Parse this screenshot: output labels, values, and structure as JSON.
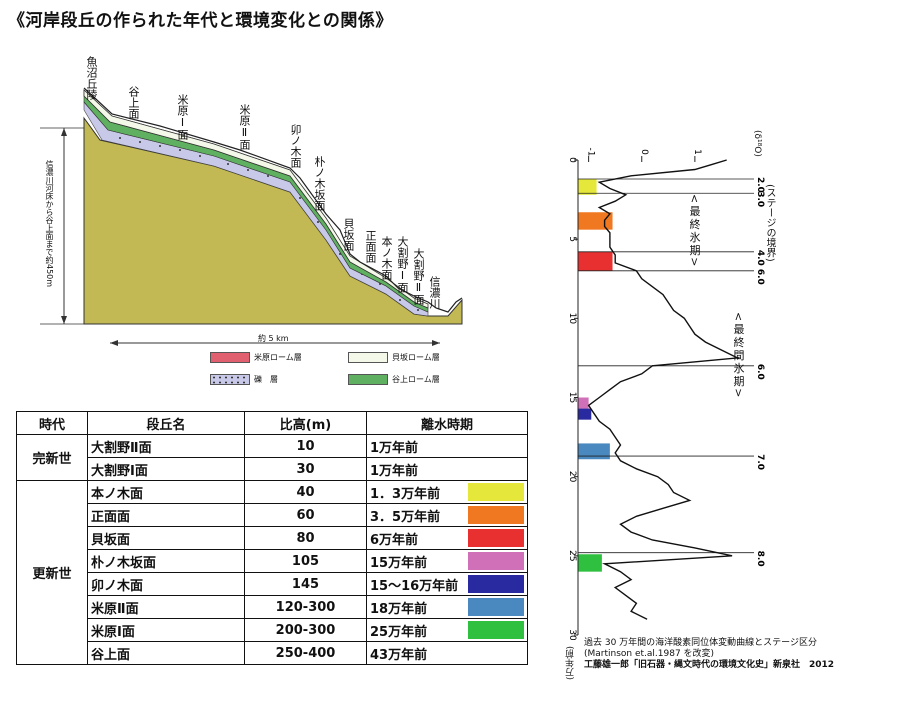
{
  "title": "《河岸段丘の作られた年代と環境変化との関係》",
  "profile": {
    "labels": [
      "魚沼丘陵",
      "谷上面",
      "米原Ⅰ面",
      "米原Ⅱ面",
      "卯ノ木面",
      "朴ノ木坂面",
      "貝坂面",
      "正面面",
      "本ノ木面",
      "大割野Ⅰ面",
      "大割野Ⅱ面",
      "信濃川"
    ],
    "height_label": "信濃川河床から谷上面まで約450m",
    "distance_label": "約 5 km",
    "legend": [
      {
        "label": "米原ローム層",
        "color": "#e06070"
      },
      {
        "label": "貝坂ローム層",
        "color": "#f4f8e8"
      },
      {
        "label": "礫　層",
        "color": "#c8c8e8"
      },
      {
        "label": "谷上ローム層",
        "color": "#5fb060"
      }
    ]
  },
  "table": {
    "headers": [
      "時代",
      "段丘名",
      "比高(m)",
      "離水時期"
    ],
    "groups": [
      {
        "era": "完新世",
        "rows": [
          {
            "name": "大割野Ⅱ面",
            "height": "10",
            "age": "1万年前",
            "color": ""
          },
          {
            "name": "大割野Ⅰ面",
            "height": "30",
            "age": "1万年前",
            "color": ""
          }
        ]
      },
      {
        "era": "更新世",
        "rows": [
          {
            "name": "本ノ木面",
            "height": "40",
            "age": "1．3万年前",
            "color": "#e5e83a"
          },
          {
            "name": "正面面",
            "height": "60",
            "age": "3．5万年前",
            "color": "#f07820"
          },
          {
            "name": "貝坂面",
            "height": "80",
            "age": "6万年前",
            "color": "#e83030"
          },
          {
            "name": "朴ノ木坂面",
            "height": "105",
            "age": "15万年前",
            "color": "#d070b8"
          },
          {
            "name": "卯ノ木面",
            "height": "145",
            "age": "15～16万年前",
            "color": "#2a2aa0"
          },
          {
            "name": "米原Ⅱ面",
            "height": "120-300",
            "age": "18万年前",
            "color": "#4a88c0"
          },
          {
            "name": "米原Ⅰ面",
            "height": "200-300",
            "age": "25万年前",
            "color": "#30c040"
          },
          {
            "name": "谷上面",
            "height": "250-400",
            "age": "43万年前",
            "color": ""
          }
        ]
      }
    ]
  },
  "chart_data": {
    "type": "line",
    "x": [
      0,
      0.3,
      0.6,
      1,
      1.4,
      1.8,
      2.2,
      2.6,
      3.0,
      3.4,
      3.8,
      4.2,
      4.6,
      5,
      5.5,
      6,
      6.5,
      7,
      7.5,
      8,
      8.5,
      9,
      9.5,
      10,
      10.5,
      11,
      11.5,
      12,
      12.5,
      13,
      13.5,
      14,
      14.5,
      15,
      15.5,
      16,
      16.5,
      17,
      17.5,
      18,
      18.5,
      19,
      19.5,
      20,
      20.5,
      21,
      21.5,
      22,
      22.5,
      23,
      23.5,
      24,
      24.5,
      25,
      25.5,
      26,
      26.5,
      27,
      27.5,
      28,
      28.5,
      29
    ],
    "y": [
      1.6,
      1.3,
      1.0,
      -0.2,
      -0.8,
      -0.6,
      -0.3,
      -0.5,
      -0.8,
      -0.6,
      -0.7,
      -0.7,
      -0.6,
      -0.6,
      -0.6,
      -0.5,
      -0.5,
      -0.1,
      0.0,
      0.2,
      0.4,
      0.5,
      0.6,
      0.8,
      0.9,
      1.0,
      1.2,
      1.5,
      1.8,
      0.2,
      0.0,
      -0.4,
      -0.6,
      -0.8,
      -1.0,
      -0.9,
      -0.8,
      -0.6,
      -0.5,
      -0.4,
      -0.5,
      -0.4,
      -0.1,
      0.3,
      0.5,
      0.6,
      0.9,
      0.4,
      -0.1,
      -0.4,
      -0.2,
      0.2,
      1.0,
      1.7,
      -0.7,
      -0.4,
      -0.2,
      -0.5,
      -0.3,
      -0.1,
      -0.2,
      0.1
    ],
    "y_ticks": [
      "0",
      "5",
      "10",
      "15",
      "20",
      "25",
      "30"
    ],
    "x_ticks": [
      "-1",
      "0",
      "1"
    ],
    "x_axis_label": "(δ¹⁸O)",
    "ylim": [
      0,
      30
    ],
    "xlim": [
      -1.2,
      2.0
    ],
    "stage_labels": [
      {
        "y": 1.2,
        "text": "2.0"
      },
      {
        "y": 2.1,
        "text": "3.0"
      },
      {
        "y": 5.8,
        "text": "4.0"
      },
      {
        "y": 7.0,
        "text": "6.0"
      },
      {
        "y": 13.0,
        "text": "6.0"
      },
      {
        "y": 18.7,
        "text": "7.0"
      },
      {
        "y": 24.8,
        "text": "8.0"
      }
    ],
    "stage_header": "(ステージの境界)",
    "glacial_labels": [
      "<最終氷期>",
      "<最終間氷期>"
    ],
    "bars": [
      {
        "y0": 1.2,
        "y1": 2.2,
        "x1": -0.85,
        "color": "#e5e83a"
      },
      {
        "y0": 3.3,
        "y1": 4.4,
        "x1": -0.55,
        "color": "#f07820"
      },
      {
        "y0": 5.8,
        "y1": 7.0,
        "x1": -0.55,
        "color": "#e83030"
      },
      {
        "y0": 15.0,
        "y1": 15.7,
        "x1": -1.0,
        "color": "#d070b8"
      },
      {
        "y0": 15.7,
        "y1": 16.4,
        "x1": -0.95,
        "color": "#2a2aa0"
      },
      {
        "y0": 17.9,
        "y1": 18.9,
        "x1": -0.6,
        "color": "#4a88c0"
      },
      {
        "y0": 24.9,
        "y1": 26.0,
        "x1": -0.75,
        "color": "#30c040"
      }
    ],
    "ylabel": "(万年前)",
    "caption": [
      "過去 30 万年間の海洋酸素同位体変動曲線とステージ区分",
      "(Martinson et.al.1987 を改変)",
      "工藤雄一郎「旧石器・縄文時代の環境文化史」新泉社　2012"
    ]
  }
}
